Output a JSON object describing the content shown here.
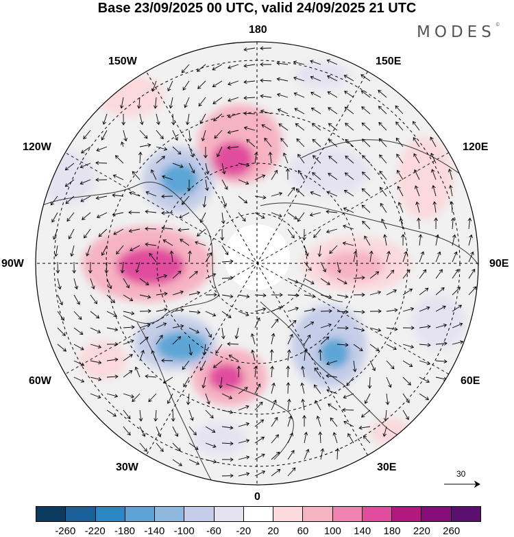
{
  "header": {
    "title": "Base 23/09/2025 00 UTC, valid 24/09/2025 21 UTC"
  },
  "logo": {
    "text": "MODES",
    "mark": "©"
  },
  "map": {
    "projection": "north-polar-stereographic",
    "longitude_labels": {
      "top": "180",
      "bottom": "0",
      "left": "90W",
      "right": "90E",
      "upper_left": "150W",
      "upper_right": "150E",
      "mid_left": "120W",
      "mid_right": "120E",
      "lower_left": "60W",
      "lower_right": "60E",
      "bottom_left": "30W",
      "bottom_right": "30E"
    },
    "anomaly_centers": [
      {
        "name": "alaska-high",
        "sign": "positive",
        "peak": 180
      },
      {
        "name": "canada-high",
        "sign": "positive",
        "peak": 180
      },
      {
        "name": "atlantic-high",
        "sign": "positive",
        "peak": 180
      },
      {
        "name": "siberia-high",
        "sign": "positive",
        "peak": 100
      },
      {
        "name": "pacific-low",
        "sign": "negative",
        "peak": -180
      },
      {
        "name": "labrador-low",
        "sign": "negative",
        "peak": -140
      },
      {
        "name": "scandinavia-low",
        "sign": "negative",
        "peak": -140
      }
    ]
  },
  "wind_scale": {
    "value": "30"
  },
  "colorbar": {
    "ticks": [
      "-260",
      "-220",
      "-180",
      "-140",
      "-100",
      "-60",
      "-20",
      "20",
      "60",
      "100",
      "140",
      "180",
      "220",
      "260"
    ],
    "colors": [
      "#0c3a5e",
      "#17609a",
      "#2b86c4",
      "#5ba5d6",
      "#8fb8df",
      "#c5cde8",
      "#e6e3f1",
      "#ffffff",
      "#fbd9dc",
      "#f6b3c2",
      "#f183b1",
      "#e04d9e",
      "#b3187f",
      "#860d7a",
      "#5a0f6e"
    ]
  }
}
